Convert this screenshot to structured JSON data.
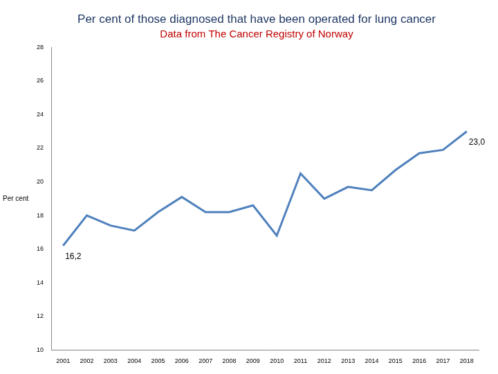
{
  "chart_data": {
    "type": "line",
    "title": "Per cent of those diagnosed that have been operated for lung cancer",
    "subtitle": "Data from The Cancer Registry of Norway",
    "y_label": "Per cent",
    "categories": [
      "2001",
      "2002",
      "2003",
      "2004",
      "2005",
      "2006",
      "2007",
      "2008",
      "2009",
      "2010",
      "2011",
      "2012",
      "2013",
      "2014",
      "2015",
      "2016",
      "2017",
      "2018"
    ],
    "values": [
      16.2,
      18.0,
      17.4,
      17.1,
      18.2,
      19.1,
      18.2,
      18.2,
      18.6,
      16.8,
      20.5,
      19.0,
      19.7,
      19.5,
      20.7,
      21.7,
      21.9,
      23.0
    ],
    "color": "#4f81bd",
    "ylim": [
      10,
      28
    ],
    "yticks": [
      10,
      12,
      14,
      16,
      18,
      20,
      22,
      24,
      26,
      28
    ],
    "grid": false,
    "annotations": [
      {
        "x": "2001",
        "y": 16.2,
        "text": "16,2"
      },
      {
        "x": "2018",
        "y": 23.0,
        "text": "23,0"
      }
    ]
  }
}
